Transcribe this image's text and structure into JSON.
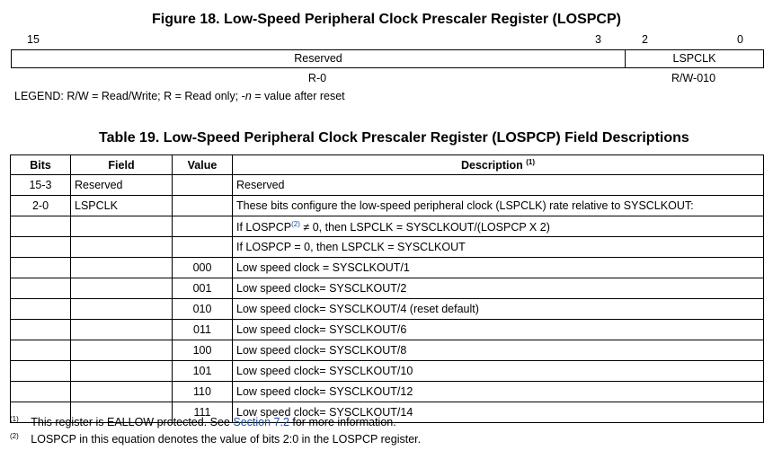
{
  "figure": {
    "title": "Figure 18. Low-Speed Peripheral Clock Prescaler Register (LOSPCP)",
    "bit_labels": {
      "b15": "15",
      "b3": "3",
      "b2": "2",
      "b0": "0"
    },
    "fields": [
      {
        "name": "Reserved",
        "access": "R-0"
      },
      {
        "name": "LSPCLK",
        "access": "R/W-010"
      }
    ],
    "legend": {
      "prefix": "LEGEND: R/W = Read/Write; R = Read only; -",
      "italic_n": "n",
      "suffix": " = value after reset"
    }
  },
  "table": {
    "title": "Table 19. Low-Speed Peripheral Clock Prescaler Register (LOSPCP) Field Descriptions",
    "headers": {
      "bits": "Bits",
      "field": "Field",
      "value": "Value",
      "description": "Description",
      "description_sup": "(1)"
    },
    "row_reserved": {
      "bits": "15-3",
      "field": "Reserved",
      "value": "",
      "description": "Reserved"
    },
    "row_lspclk": {
      "bits": "2-0",
      "field": "LSPCLK",
      "lines": [
        {
          "value": "",
          "text": "These bits configure the low-speed peripheral clock (LSPCLK) rate relative to SYSCLKOUT:"
        },
        {
          "value": "",
          "text_pre": "If LOSPCP",
          "sup": "(2)",
          "text_post": " ≠ 0, then LSPCLK = SYSCLKOUT/(LOSPCP X 2)"
        },
        {
          "value": "",
          "text": "If LOSPCP = 0, then LSPCLK = SYSCLKOUT"
        },
        {
          "value": "000",
          "text": "Low speed clock = SYSCLKOUT/1"
        },
        {
          "value": "001",
          "text": "Low speed clock= SYSCLKOUT/2"
        },
        {
          "value": "010",
          "text": "Low speed clock= SYSCLKOUT/4 (reset default)"
        },
        {
          "value": "011",
          "text": "Low speed clock= SYSCLKOUT/6"
        },
        {
          "value": "100",
          "text": "Low speed clock= SYSCLKOUT/8"
        },
        {
          "value": "101",
          "text": "Low speed clock= SYSCLKOUT/10"
        },
        {
          "value": "110",
          "text": "Low speed clock= SYSCLKOUT/12"
        },
        {
          "value": "111",
          "text": "Low speed clock= SYSCLKOUT/14"
        }
      ]
    }
  },
  "footnotes": [
    {
      "mark": "(1)",
      "pre": "This register is EALLOW protected. See ",
      "link": "Section 7.2",
      "post": " for more information."
    },
    {
      "mark": "(2)",
      "text": "LOSPCP in this equation denotes the value of bits 2:0 in the LOSPCP register."
    }
  ]
}
